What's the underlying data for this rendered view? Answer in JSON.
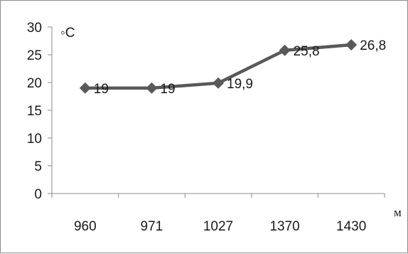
{
  "chart_data": {
    "type": "line",
    "title": "",
    "xlabel": "м",
    "ylabel": "◦C",
    "categories": [
      "960",
      "971",
      "1027",
      "1370",
      "1430"
    ],
    "series": [
      {
        "values": [
          19,
          19,
          19.9,
          25.8,
          26.8
        ]
      }
    ],
    "data_labels": [
      "19",
      "19",
      "19,9",
      "25,8",
      "26,8"
    ],
    "y_ticks": [
      0,
      5,
      10,
      15,
      20,
      25,
      30
    ],
    "ylim": [
      0,
      30
    ],
    "grid": false,
    "legend": "none",
    "line_color": "#595959",
    "marker": "diamond"
  }
}
